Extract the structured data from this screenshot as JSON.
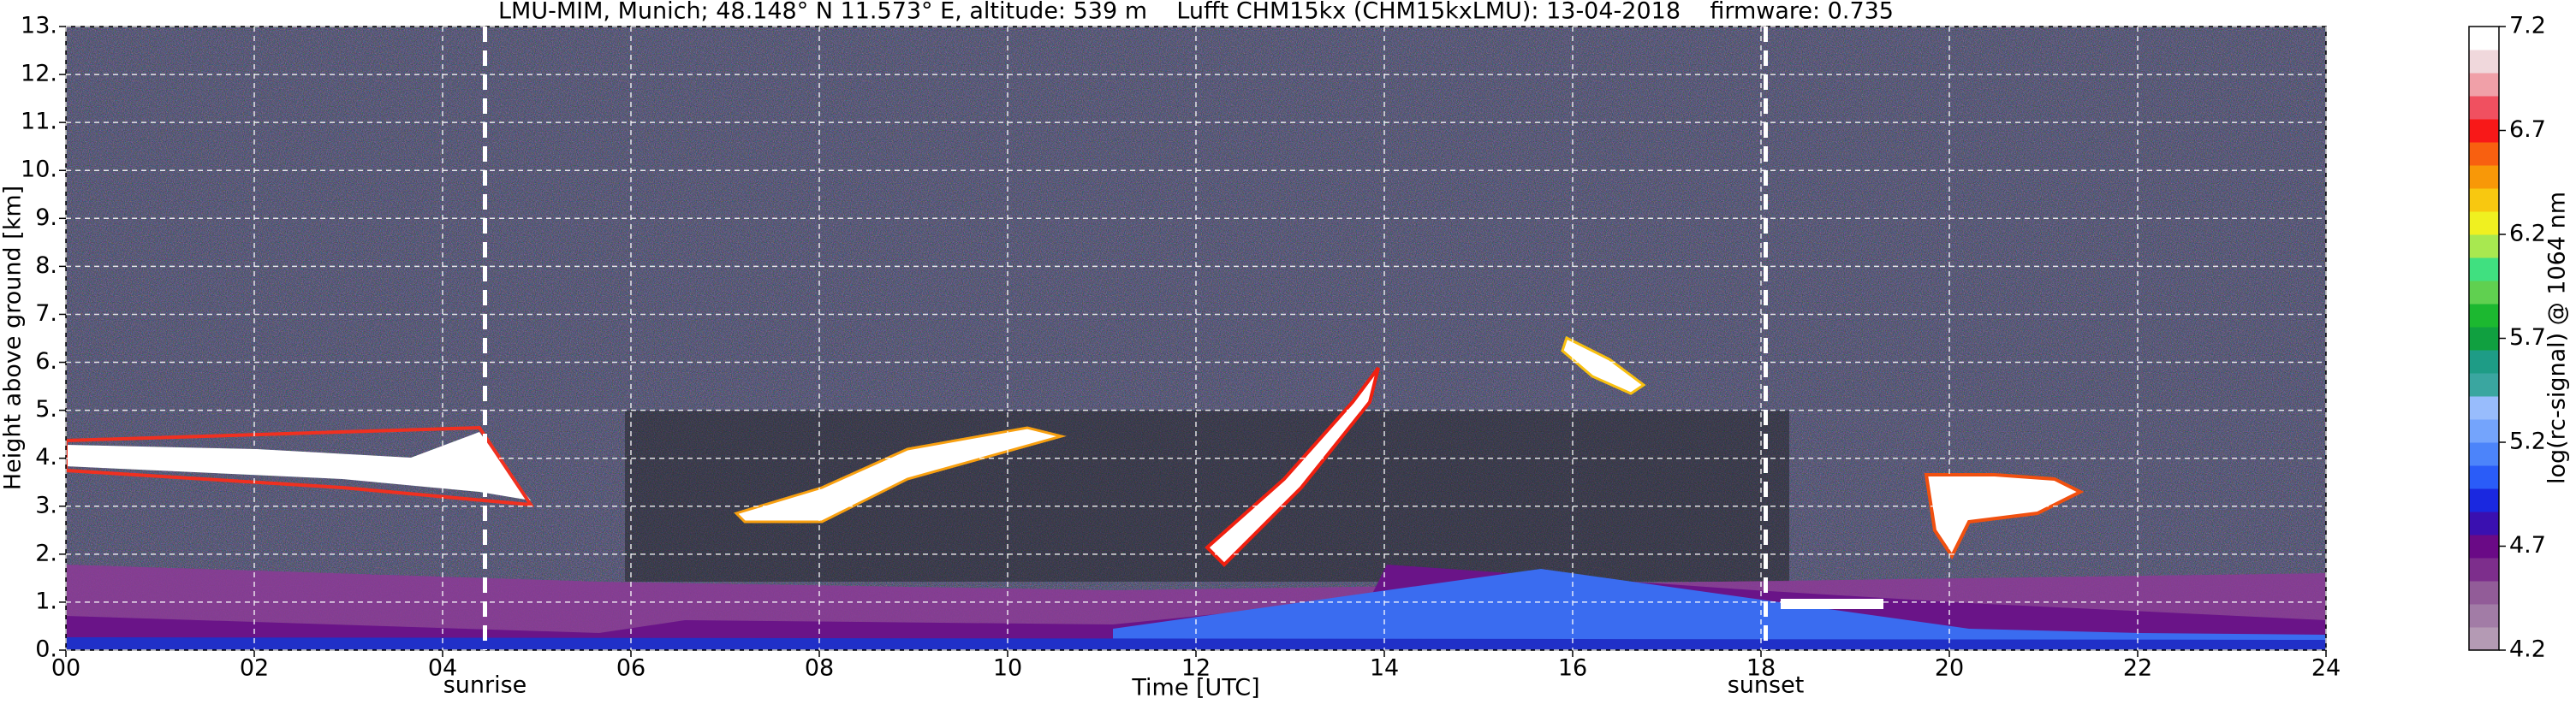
{
  "chart_data": {
    "type": "heatmap",
    "title": "LMU-MIM, Munich; 48.148° N 11.573° E, altitude: 539 m    Lufft CHM15kx (CHM15kxLMU): 13-04-2018    firmware: 0.735",
    "x_label": "Time [UTC]",
    "y_label": "Height above ground [km]",
    "xlim": [
      0,
      24
    ],
    "xticks": [
      {
        "value": 0,
        "label": "00"
      },
      {
        "value": 2,
        "label": "02"
      },
      {
        "value": 4,
        "label": "04"
      },
      {
        "value": 6,
        "label": "06"
      },
      {
        "value": 8,
        "label": "08"
      },
      {
        "value": 10,
        "label": "10"
      },
      {
        "value": 12,
        "label": "12"
      },
      {
        "value": 14,
        "label": "14"
      },
      {
        "value": 16,
        "label": "16"
      },
      {
        "value": 18,
        "label": "18"
      },
      {
        "value": 20,
        "label": "20"
      },
      {
        "value": 22,
        "label": "22"
      },
      {
        "value": 24,
        "label": "24"
      }
    ],
    "ylim": [
      0,
      13
    ],
    "yticks": [
      {
        "value": 0,
        "label": "0."
      },
      {
        "value": 1,
        "label": "1."
      },
      {
        "value": 2,
        "label": "2."
      },
      {
        "value": 3,
        "label": "3."
      },
      {
        "value": 4,
        "label": "4."
      },
      {
        "value": 5,
        "label": "5."
      },
      {
        "value": 6,
        "label": "6."
      },
      {
        "value": 7,
        "label": "7."
      },
      {
        "value": 8,
        "label": "8."
      },
      {
        "value": 9,
        "label": "9."
      },
      {
        "value": 10,
        "label": "10."
      },
      {
        "value": 11,
        "label": "11."
      },
      {
        "value": 12,
        "label": "12."
      },
      {
        "value": 13,
        "label": "13."
      }
    ],
    "grid": true,
    "annotations": [
      {
        "text": "sunrise",
        "x": 4.45
      },
      {
        "text": "sunset",
        "x": 18.05
      }
    ],
    "colorbar": {
      "label": "log(rc-signal) @ 1064 nm",
      "lim": [
        4.2,
        7.2
      ],
      "ticks": [
        4.2,
        4.7,
        5.2,
        5.7,
        6.2,
        6.7,
        7.2
      ],
      "colors": [
        "#b49ab4",
        "#a27ca6",
        "#925c98",
        "#7d2e8c",
        "#6a0a86",
        "#3a10b0",
        "#1a28e0",
        "#2a5cf8",
        "#4c84fa",
        "#74a4fc",
        "#98bcfc",
        "#3aa6a0",
        "#1e9c86",
        "#10a040",
        "#1cb830",
        "#60d050",
        "#40e080",
        "#a8e850",
        "#f0f020",
        "#f8c810",
        "#f89808",
        "#f86010",
        "#f81818",
        "#f05060",
        "#f0a0a8",
        "#f0d8dc",
        "#ffffff"
      ]
    }
  }
}
